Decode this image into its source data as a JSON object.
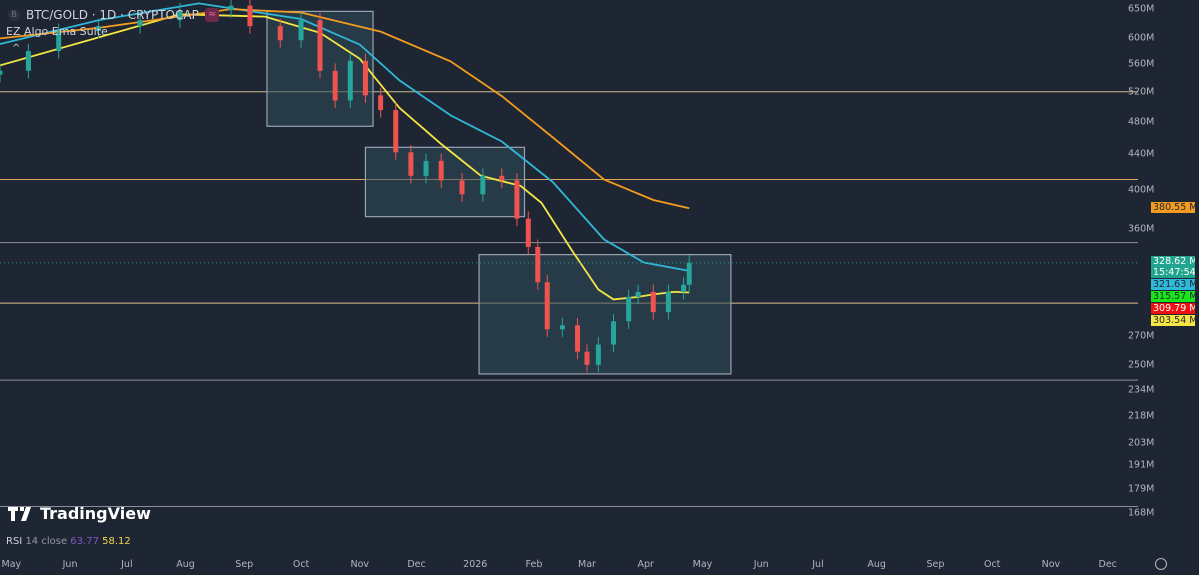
{
  "header": {
    "symbol_icon": "B",
    "title": "BTC/GOLD · 1D · CRYPTOCAP",
    "indicator_icon": "≈",
    "indicator_name": "EZ Algo Ema Suite",
    "collapse_icon": "^"
  },
  "branding": {
    "logo_text": "TradingView"
  },
  "rsi": {
    "name": "RSI",
    "params": "14 close",
    "value1": "63.77",
    "value2": "58.12",
    "value1_color": "#7e57c2",
    "value2_color": "#f0d848"
  },
  "chart_data": {
    "type": "candlestick",
    "y_scale": "log",
    "ylim": [
      158,
      665
    ],
    "xlim": [
      "2025-04-25",
      "2026-12-17"
    ],
    "grid": false,
    "y_ticks": [
      "650M",
      "600M",
      "560M",
      "520M",
      "480M",
      "440M",
      "400M",
      "360M",
      "270M",
      "250M",
      "234M",
      "218M",
      "203M",
      "191M",
      "179M",
      "168M"
    ],
    "y_tick_values": [
      650,
      600,
      560,
      520,
      480,
      440,
      400,
      360,
      270,
      250,
      234,
      218,
      203,
      191,
      179,
      168
    ],
    "x_ticks": [
      {
        "label": "May",
        "date": "2025-05-01"
      },
      {
        "label": "Jun",
        "date": "2025-06-01"
      },
      {
        "label": "Jul",
        "date": "2025-07-01"
      },
      {
        "label": "Aug",
        "date": "2025-08-01"
      },
      {
        "label": "Sep",
        "date": "2025-09-01"
      },
      {
        "label": "Oct",
        "date": "2025-10-01"
      },
      {
        "label": "Nov",
        "date": "2025-11-01"
      },
      {
        "label": "Dec",
        "date": "2025-12-01"
      },
      {
        "label": "2026",
        "date": "2026-01-01"
      },
      {
        "label": "Feb",
        "date": "2026-02-01"
      },
      {
        "label": "Mar",
        "date": "2026-03-01"
      },
      {
        "label": "Apr",
        "date": "2026-04-01"
      },
      {
        "label": "May",
        "date": "2026-05-01"
      },
      {
        "label": "Jun",
        "date": "2026-06-01"
      },
      {
        "label": "Jul",
        "date": "2026-07-01"
      },
      {
        "label": "Aug",
        "date": "2026-08-01"
      },
      {
        "label": "Sep",
        "date": "2026-09-01"
      },
      {
        "label": "Oct",
        "date": "2026-10-01"
      },
      {
        "label": "Nov",
        "date": "2026-11-01"
      },
      {
        "label": "Dec",
        "date": "2026-12-01"
      }
    ],
    "close": [
      [
        "2025-04-25",
        550
      ],
      [
        "2025-05-10",
        580
      ],
      [
        "2025-05-26",
        612
      ],
      [
        "2025-06-16",
        620
      ],
      [
        "2025-07-08",
        630
      ],
      [
        "2025-07-29",
        647
      ],
      [
        "2025-08-25",
        655
      ],
      [
        "2025-09-04",
        620
      ],
      [
        "2025-09-20",
        597
      ],
      [
        "2025-10-01",
        630
      ],
      [
        "2025-10-11",
        550
      ],
      [
        "2025-10-19",
        508
      ],
      [
        "2025-10-27",
        565
      ],
      [
        "2025-11-04",
        515
      ],
      [
        "2025-11-12",
        495
      ],
      [
        "2025-11-20",
        442
      ],
      [
        "2025-11-28",
        415
      ],
      [
        "2025-12-06",
        432
      ],
      [
        "2025-12-14",
        410
      ],
      [
        "2025-12-25",
        395
      ],
      [
        "2026-01-05",
        415
      ],
      [
        "2026-01-15",
        410
      ],
      [
        "2026-01-23",
        370
      ],
      [
        "2026-01-29",
        343
      ],
      [
        "2026-02-03",
        312
      ],
      [
        "2026-02-08",
        275
      ],
      [
        "2026-02-16",
        278
      ],
      [
        "2026-02-24",
        259
      ],
      [
        "2026-03-01",
        250
      ],
      [
        "2026-03-07",
        264
      ],
      [
        "2026-03-15",
        281
      ],
      [
        "2026-03-23",
        300
      ],
      [
        "2026-03-28",
        304
      ],
      [
        "2026-04-05",
        288
      ],
      [
        "2026-04-13",
        304
      ],
      [
        "2026-04-21",
        310
      ],
      [
        "2026-04-24",
        328.62
      ]
    ],
    "series": [
      {
        "color": "#f5e642",
        "values": [
          [
            "2025-04-25",
            558
          ],
          [
            "2025-07-29",
            640
          ],
          [
            "2025-09-12",
            636
          ],
          [
            "2025-10-11",
            609
          ],
          [
            "2025-11-01",
            568
          ],
          [
            "2025-11-22",
            498
          ],
          [
            "2025-12-14",
            452
          ],
          [
            "2026-01-04",
            415
          ],
          [
            "2026-01-25",
            404
          ],
          [
            "2026-02-05",
            386
          ],
          [
            "2026-02-21",
            340
          ],
          [
            "2026-03-07",
            306
          ],
          [
            "2026-03-15",
            298
          ],
          [
            "2026-03-28",
            300
          ],
          [
            "2026-04-05",
            302
          ],
          [
            "2026-04-16",
            304
          ],
          [
            "2026-04-24",
            303.54
          ]
        ]
      },
      {
        "color": "#2fb8d8",
        "values": [
          [
            "2025-04-25",
            591
          ],
          [
            "2025-06-16",
            630
          ],
          [
            "2025-08-08",
            659
          ],
          [
            "2025-10-01",
            632
          ],
          [
            "2025-11-01",
            590
          ],
          [
            "2025-11-22",
            536
          ],
          [
            "2025-12-19",
            488
          ],
          [
            "2026-01-15",
            455
          ],
          [
            "2026-02-11",
            408
          ],
          [
            "2026-03-10",
            350
          ],
          [
            "2026-03-31",
            329
          ],
          [
            "2026-04-24",
            321.63
          ]
        ]
      },
      {
        "color": "#f39c1f",
        "values": [
          [
            "2025-04-25",
            600
          ],
          [
            "2025-06-16",
            617
          ],
          [
            "2025-08-25",
            649
          ],
          [
            "2025-10-01",
            643
          ],
          [
            "2025-11-12",
            611
          ],
          [
            "2025-12-19",
            564
          ],
          [
            "2026-01-15",
            514
          ],
          [
            "2026-02-11",
            460
          ],
          [
            "2026-03-10",
            411
          ],
          [
            "2026-04-05",
            389
          ],
          [
            "2026-04-24",
            380.55
          ]
        ]
      }
    ],
    "levels": [
      {
        "price": 520,
        "color": "#c9b98a"
      },
      {
        "price": 411,
        "color": "#d9a866"
      },
      {
        "price": 347,
        "color": "#8a8f99"
      },
      {
        "price": 295,
        "color": "#d9c08a"
      },
      {
        "price": 240,
        "color": "#8a8f99"
      },
      {
        "price": 171,
        "color": "#8a8f99"
      }
    ],
    "boxes": [
      {
        "from": "2025-09-13",
        "to": "2025-11-08",
        "high": 645,
        "low": 474
      },
      {
        "from": "2025-11-04",
        "to": "2026-01-27",
        "high": 448,
        "low": 372
      },
      {
        "from": "2026-01-03",
        "to": "2026-05-16",
        "high": 336,
        "low": 244
      }
    ],
    "price_badges": [
      {
        "text": "380.55 M",
        "bg": "#f39c1f",
        "fg": "#1f2633"
      },
      {
        "text": "328.62 M",
        "sub": "15:47:54",
        "bg": "#22a58f",
        "fg": "#ffffff"
      },
      {
        "text": "321.63 M",
        "bg": "#2fb8d8",
        "fg": "#1f2633"
      },
      {
        "text": "315.57 M",
        "bg": "#19e619",
        "fg": "#1f2633"
      },
      {
        "text": "309.79 M",
        "bg": "#ee1111",
        "fg": "#ffffff"
      },
      {
        "text": "303.54 M",
        "bg": "#f5e642",
        "fg": "#1f2633"
      }
    ],
    "colors": {
      "up": "#26a69a",
      "down": "#ef5350",
      "box_fill": "#2e4a5a",
      "box_stroke": "#9aa4b0"
    }
  }
}
